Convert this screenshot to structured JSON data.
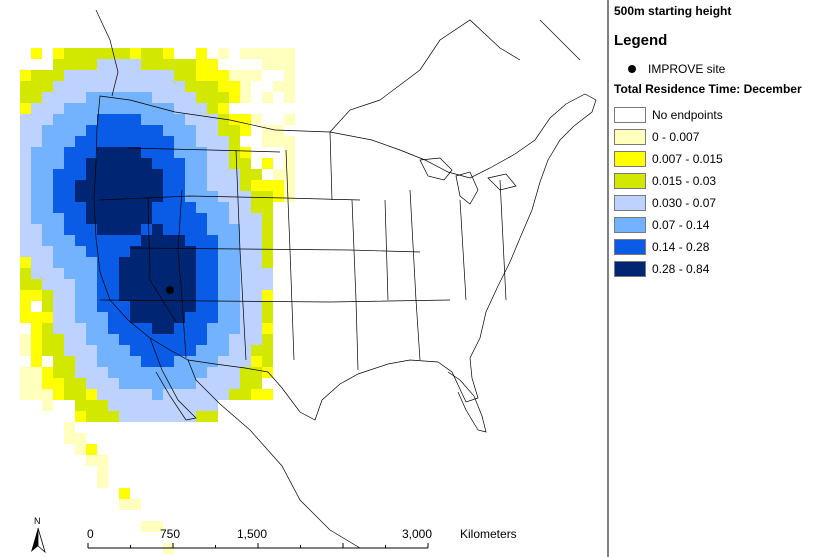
{
  "map": {
    "title": "500m starting height",
    "legend_title": "Legend",
    "site_label": "IMPROVE site",
    "residence_title": "Total Residence Time: December",
    "legend_items": [
      {
        "label": "No endpoints",
        "color": "#ffffff"
      },
      {
        "label": "0 - 0.007",
        "color": "#ffffbe"
      },
      {
        "label": "0.007 - 0.015",
        "color": "#ffff00"
      },
      {
        "label": "0.015 - 0.03",
        "color": "#d3e800"
      },
      {
        "label": "0.030 - 0.07",
        "color": "#bed2ff"
      },
      {
        "label": "0.07 - 0.14",
        "color": "#73b2ff"
      },
      {
        "label": "0.14 - 0.28",
        "color": "#0a5ce6"
      },
      {
        "label": "0.28 - 0.84",
        "color": "#002673"
      }
    ],
    "scale": {
      "ticks": [
        "0",
        "750",
        "1,500",
        "3,000"
      ],
      "unit": "Kilometers"
    },
    "north_label": "N"
  }
}
